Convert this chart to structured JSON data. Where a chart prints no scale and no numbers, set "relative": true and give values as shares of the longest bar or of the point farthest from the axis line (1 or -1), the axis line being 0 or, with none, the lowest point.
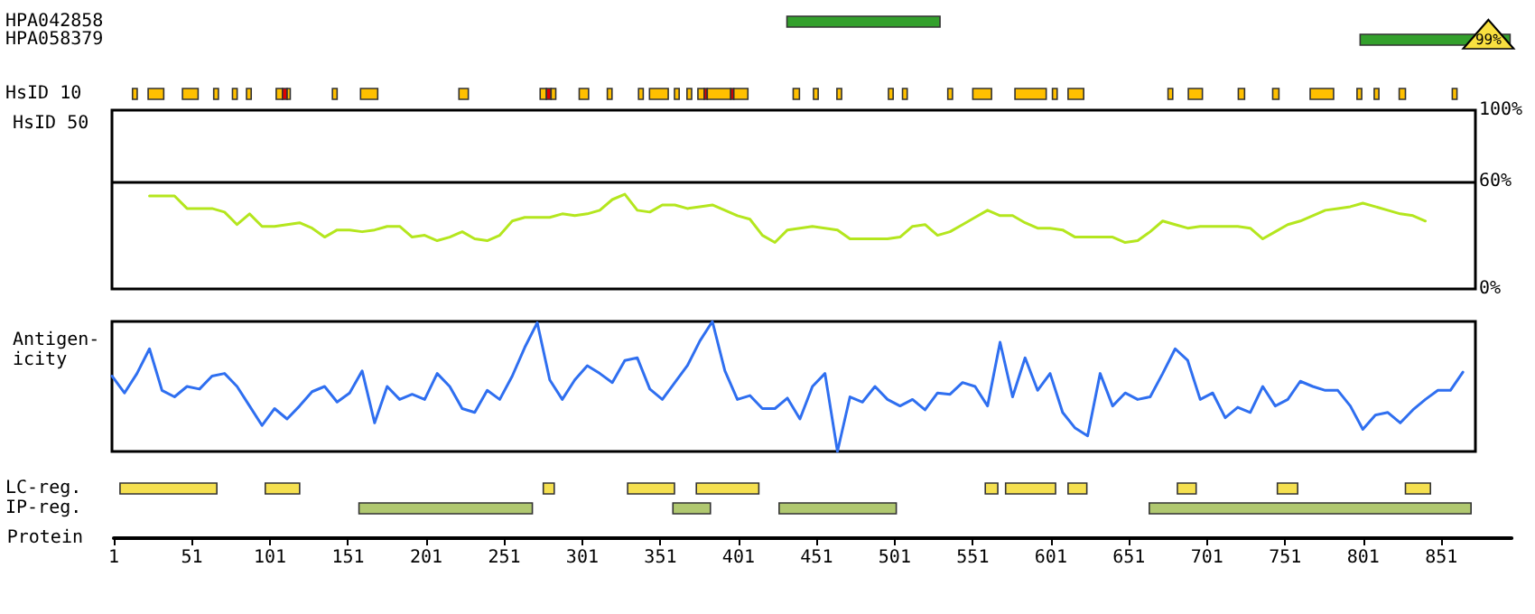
{
  "chart_data": [
    {
      "type": "bar",
      "orientation": "horizontal",
      "categories": [
        "HPA042858",
        "HPA058379",
        null,
        null,
        "HsID 10"
      ],
      "xlim": [
        1,
        896
      ],
      "tick_labels": "y",
      "annotations": [
        {
          "text": "99%",
          "x": 895,
          "y": "HPA058379"
        }
      ],
      "series": [
        {
          "color": "#33a02c",
          "base": [
            432,
            799,
            null,
            null,
            null
          ],
          "values": [
            98,
            96,
            null,
            null,
            null
          ]
        },
        {
          "color": "#ffc000",
          "base": [
            null,
            null,
            null,
            null,
            13
          ],
          "values": [
            null,
            null,
            null,
            null,
            3
          ]
        },
        {
          "color": "#ffc000",
          "base": [
            null,
            null,
            null,
            null,
            23
          ],
          "values": [
            null,
            null,
            null,
            null,
            10
          ]
        },
        {
          "color": "#ffc000",
          "base": [
            null,
            null,
            null,
            null,
            45
          ],
          "values": [
            null,
            null,
            null,
            null,
            10
          ]
        },
        {
          "color": "#ffc000",
          "base": [
            null,
            null,
            null,
            null,
            65
          ],
          "values": [
            null,
            null,
            null,
            null,
            3
          ]
        },
        {
          "color": "#ffc000",
          "base": [
            null,
            null,
            null,
            null,
            77
          ],
          "values": [
            null,
            null,
            null,
            null,
            3
          ]
        },
        {
          "color": "#ffc000",
          "base": [
            null,
            null,
            null,
            null,
            86
          ],
          "values": [
            null,
            null,
            null,
            null,
            3
          ]
        },
        {
          "color": "#ffc000",
          "base": [
            null,
            null,
            null,
            null,
            105
          ],
          "values": [
            null,
            null,
            null,
            null,
            4
          ]
        },
        {
          "color": "#e00000",
          "base": [
            null,
            null,
            null,
            null,
            109
          ],
          "values": [
            null,
            null,
            null,
            null,
            3
          ]
        },
        {
          "color": "#ffc000",
          "base": [
            null,
            null,
            null,
            null,
            112
          ],
          "values": [
            null,
            null,
            null,
            null,
            2
          ]
        },
        {
          "color": "#ffc000",
          "base": [
            null,
            null,
            null,
            null,
            141
          ],
          "values": [
            null,
            null,
            null,
            null,
            3
          ]
        },
        {
          "color": "#ffc000",
          "base": [
            null,
            null,
            null,
            null,
            159
          ],
          "values": [
            null,
            null,
            null,
            null,
            11
          ]
        },
        {
          "color": "#ffc000",
          "base": [
            null,
            null,
            null,
            null,
            222
          ],
          "values": [
            null,
            null,
            null,
            null,
            6
          ]
        },
        {
          "color": "#ffc000",
          "base": [
            null,
            null,
            null,
            null,
            274
          ],
          "values": [
            null,
            null,
            null,
            null,
            4
          ]
        },
        {
          "color": "#e00000",
          "base": [
            null,
            null,
            null,
            null,
            278
          ],
          "values": [
            null,
            null,
            null,
            null,
            3
          ]
        },
        {
          "color": "#ffc000",
          "base": [
            null,
            null,
            null,
            null,
            281
          ],
          "values": [
            null,
            null,
            null,
            null,
            3
          ]
        },
        {
          "color": "#ffc000",
          "base": [
            null,
            null,
            null,
            null,
            299
          ],
          "values": [
            null,
            null,
            null,
            null,
            6
          ]
        },
        {
          "color": "#ffc000",
          "base": [
            null,
            null,
            null,
            null,
            317
          ],
          "values": [
            null,
            null,
            null,
            null,
            3
          ]
        },
        {
          "color": "#ffc000",
          "base": [
            null,
            null,
            null,
            null,
            337
          ],
          "values": [
            null,
            null,
            null,
            null,
            3
          ]
        },
        {
          "color": "#ffc000",
          "base": [
            null,
            null,
            null,
            null,
            344
          ],
          "values": [
            null,
            null,
            null,
            null,
            12
          ]
        },
        {
          "color": "#ffc000",
          "base": [
            null,
            null,
            null,
            null,
            360
          ],
          "values": [
            null,
            null,
            null,
            null,
            3
          ]
        },
        {
          "color": "#ffc000",
          "base": [
            null,
            null,
            null,
            null,
            368
          ],
          "values": [
            null,
            null,
            null,
            null,
            3
          ]
        },
        {
          "color": "#ffc000",
          "base": [
            null,
            null,
            null,
            null,
            375
          ],
          "values": [
            null,
            null,
            null,
            null,
            4
          ]
        },
        {
          "color": "#e00000",
          "base": [
            null,
            null,
            null,
            null,
            379
          ],
          "values": [
            null,
            null,
            null,
            null,
            2
          ]
        },
        {
          "color": "#ffc000",
          "base": [
            null,
            null,
            null,
            null,
            381
          ],
          "values": [
            null,
            null,
            null,
            null,
            15
          ]
        },
        {
          "color": "#e00000",
          "base": [
            null,
            null,
            null,
            null,
            396
          ],
          "values": [
            null,
            null,
            null,
            null,
            2
          ]
        },
        {
          "color": "#ffc000",
          "base": [
            null,
            null,
            null,
            null,
            398
          ],
          "values": [
            null,
            null,
            null,
            null,
            9
          ]
        },
        {
          "color": "#ffc000",
          "base": [
            null,
            null,
            null,
            null,
            436
          ],
          "values": [
            null,
            null,
            null,
            null,
            4
          ]
        },
        {
          "color": "#ffc000",
          "base": [
            null,
            null,
            null,
            null,
            449
          ],
          "values": [
            null,
            null,
            null,
            null,
            3
          ]
        },
        {
          "color": "#ffc000",
          "base": [
            null,
            null,
            null,
            null,
            464
          ],
          "values": [
            null,
            null,
            null,
            null,
            3
          ]
        },
        {
          "color": "#ffc000",
          "base": [
            null,
            null,
            null,
            null,
            497
          ],
          "values": [
            null,
            null,
            null,
            null,
            3
          ]
        },
        {
          "color": "#ffc000",
          "base": [
            null,
            null,
            null,
            null,
            506
          ],
          "values": [
            null,
            null,
            null,
            null,
            3
          ]
        },
        {
          "color": "#ffc000",
          "base": [
            null,
            null,
            null,
            null,
            535
          ],
          "values": [
            null,
            null,
            null,
            null,
            3
          ]
        },
        {
          "color": "#ffc000",
          "base": [
            null,
            null,
            null,
            null,
            551
          ],
          "values": [
            null,
            null,
            null,
            null,
            12
          ]
        },
        {
          "color": "#ffc000",
          "base": [
            null,
            null,
            null,
            null,
            578
          ],
          "values": [
            null,
            null,
            null,
            null,
            20
          ]
        },
        {
          "color": "#ffc000",
          "base": [
            null,
            null,
            null,
            null,
            602
          ],
          "values": [
            null,
            null,
            null,
            null,
            3
          ]
        },
        {
          "color": "#ffc000",
          "base": [
            null,
            null,
            null,
            null,
            612
          ],
          "values": [
            null,
            null,
            null,
            null,
            10
          ]
        },
        {
          "color": "#ffc000",
          "base": [
            null,
            null,
            null,
            null,
            676
          ],
          "values": [
            null,
            null,
            null,
            null,
            3
          ]
        },
        {
          "color": "#ffc000",
          "base": [
            null,
            null,
            null,
            null,
            689
          ],
          "values": [
            null,
            null,
            null,
            null,
            9
          ]
        },
        {
          "color": "#ffc000",
          "base": [
            null,
            null,
            null,
            null,
            721
          ],
          "values": [
            null,
            null,
            null,
            null,
            4
          ]
        },
        {
          "color": "#ffc000",
          "base": [
            null,
            null,
            null,
            null,
            743
          ],
          "values": [
            null,
            null,
            null,
            null,
            4
          ]
        },
        {
          "color": "#ffc000",
          "base": [
            null,
            null,
            null,
            null,
            767
          ],
          "values": [
            null,
            null,
            null,
            null,
            15
          ]
        },
        {
          "color": "#ffc000",
          "base": [
            null,
            null,
            null,
            null,
            797
          ],
          "values": [
            null,
            null,
            null,
            null,
            3
          ]
        },
        {
          "color": "#ffc000",
          "base": [
            null,
            null,
            null,
            null,
            808
          ],
          "values": [
            null,
            null,
            null,
            null,
            3
          ]
        },
        {
          "color": "#ffc000",
          "base": [
            null,
            null,
            null,
            null,
            824
          ],
          "values": [
            null,
            null,
            null,
            null,
            4
          ]
        },
        {
          "color": "#ffc000",
          "base": [
            null,
            null,
            null,
            null,
            858
          ],
          "values": [
            null,
            null,
            null,
            null,
            3
          ]
        }
      ]
    },
    {
      "type": "line",
      "ylabel": "HsID 50",
      "ylim": [
        0,
        100
      ],
      "tick_labels": "y",
      "categories": [
        null,
        null,
        null,
        null,
        null,
        null,
        null,
        null,
        null,
        null,
        null,
        null,
        null,
        null,
        null,
        null,
        null,
        null,
        null,
        null,
        null,
        null,
        null,
        null,
        null,
        null,
        null,
        null,
        null,
        null,
        null,
        null,
        null,
        null,
        null,
        null,
        null,
        null,
        null,
        null,
        null,
        null,
        null,
        null,
        null,
        null,
        null,
        null,
        null,
        null,
        null,
        null,
        null,
        null,
        null,
        null,
        null,
        null,
        null,
        null,
        null,
        null,
        null,
        null,
        null,
        null,
        null,
        null,
        null,
        null,
        null,
        null,
        null,
        null,
        null,
        null,
        null,
        null,
        null,
        null,
        null,
        null,
        null,
        null,
        null,
        null,
        null,
        null,
        null,
        null,
        null,
        null,
        null,
        null,
        null,
        null,
        null,
        null,
        null,
        null,
        null,
        null,
        null,
        null,
        null,
        null,
        null,
        null,
        null,
        null
      ],
      "yticks": [
        {
          "value": 0,
          "label": "0%"
        },
        {
          "value": 60,
          "label": "60%"
        },
        {
          "value": 100,
          "label": "100%"
        }
      ],
      "ref_lines": [
        {
          "axis": "y",
          "value": 60,
          "color": "#000000"
        }
      ],
      "series": [
        {
          "color": "#b4e61e",
          "values": [
            null,
            null,
            null,
            52,
            52,
            52,
            45,
            45,
            45,
            43,
            36,
            42,
            35,
            35,
            36,
            37,
            34,
            29,
            33,
            33,
            32,
            33,
            35,
            35,
            29,
            30,
            27,
            29,
            32,
            28,
            27,
            30,
            38,
            40,
            40,
            40,
            42,
            41,
            42,
            44,
            50,
            53,
            44,
            43,
            47,
            47,
            45,
            46,
            47,
            44,
            41,
            39,
            30,
            26,
            33,
            34,
            35,
            34,
            33,
            28,
            28,
            28,
            28,
            29,
            35,
            36,
            30,
            32,
            36,
            40,
            44,
            41,
            41,
            37,
            34,
            34,
            33,
            29,
            29,
            29,
            29,
            26,
            27,
            32,
            38,
            36,
            34,
            35,
            35,
            35,
            35,
            34,
            28,
            32,
            36,
            38,
            41,
            44,
            45,
            46,
            48,
            46,
            44,
            42,
            41,
            38,
            null,
            null,
            null,
            null
          ]
        }
      ]
    },
    {
      "type": "line",
      "ylabel": "Antigen-\nicity",
      "relative": true,
      "tick_labels": false,
      "categories": [
        null,
        null,
        null,
        null,
        null,
        null,
        null,
        null,
        null,
        null,
        null,
        null,
        null,
        null,
        null,
        null,
        null,
        null,
        null,
        null,
        null,
        null,
        null,
        null,
        null,
        null,
        null,
        null,
        null,
        null,
        null,
        null,
        null,
        null,
        null,
        null,
        null,
        null,
        null,
        null,
        null,
        null,
        null,
        null,
        null,
        null,
        null,
        null,
        null,
        null,
        null,
        null,
        null,
        null,
        null,
        null,
        null,
        null,
        null,
        null,
        null,
        null,
        null,
        null,
        null,
        null,
        null,
        null,
        null,
        null,
        null,
        null,
        null,
        null,
        null,
        null,
        null,
        null,
        null,
        null,
        null,
        null,
        null,
        null,
        null,
        null,
        null,
        null,
        null,
        null,
        null,
        null,
        null,
        null,
        null,
        null,
        null,
        null,
        null,
        null,
        null,
        null,
        null,
        null,
        null,
        null,
        null,
        null,
        null,
        null
      ],
      "series": [
        {
          "color": "#2f6ff0",
          "values": [
            0.58,
            0.45,
            0.6,
            0.79,
            0.47,
            0.42,
            0.5,
            0.48,
            0.58,
            0.6,
            0.5,
            0.35,
            0.2,
            0.33,
            0.25,
            0.35,
            0.46,
            0.5,
            0.38,
            0.45,
            0.62,
            0.22,
            0.5,
            0.4,
            0.44,
            0.4,
            0.6,
            0.5,
            0.33,
            0.3,
            0.47,
            0.4,
            0.58,
            0.8,
            0.99,
            0.55,
            0.4,
            0.55,
            0.66,
            0.6,
            0.53,
            0.7,
            0.72,
            0.48,
            0.4,
            0.53,
            0.66,
            0.85,
            1.0,
            0.62,
            0.4,
            0.43,
            0.33,
            0.33,
            0.41,
            0.25,
            0.5,
            0.6,
            0,
            0.42,
            0.38,
            0.5,
            0.4,
            0.35,
            0.4,
            0.32,
            0.45,
            0.44,
            0.53,
            0.5,
            0.35,
            0.84,
            0.42,
            0.72,
            0.47,
            0.6,
            0.3,
            0.18,
            0.12,
            0.6,
            0.35,
            0.45,
            0.4,
            0.42,
            0.6,
            0.79,
            0.7,
            0.4,
            0.45,
            0.26,
            0.34,
            0.3,
            0.5,
            0.35,
            0.4,
            0.54,
            0.5,
            0.47,
            0.47,
            0.35,
            0.17,
            0.28,
            0.3,
            0.22,
            0.32,
            0.4,
            0.47,
            0.47,
            0.61,
            null
          ]
        }
      ]
    },
    {
      "type": "bar",
      "orientation": "horizontal",
      "categories": [
        "LC-reg.",
        "IP-reg."
      ],
      "xlim": [
        1,
        896
      ],
      "xlabel": "Protein",
      "xticks": [
        1,
        51,
        101,
        151,
        201,
        251,
        301,
        351,
        401,
        451,
        501,
        551,
        601,
        651,
        701,
        751,
        801,
        851
      ],
      "series": [
        {
          "colors": [
            "#f5e050",
            "#b0c870"
          ],
          "base": [
            5,
            158
          ],
          "values": [
            62,
            111
          ]
        },
        {
          "colors": [
            "#f5e050",
            "#b0c870"
          ],
          "base": [
            98,
            359
          ],
          "values": [
            22,
            24
          ]
        },
        {
          "colors": [
            "#f5e050",
            "#b0c870"
          ],
          "base": [
            276,
            427
          ],
          "values": [
            7,
            75
          ]
        },
        {
          "colors": [
            "#f5e050",
            "#b0c870"
          ],
          "base": [
            330,
            664
          ],
          "values": [
            30,
            206
          ]
        },
        {
          "colors": [
            "#f5e050",
            null
          ],
          "base": [
            374,
            null
          ],
          "values": [
            40,
            null
          ]
        },
        {
          "colors": [
            "#f5e050",
            null
          ],
          "base": [
            559,
            null
          ],
          "values": [
            8,
            null
          ]
        },
        {
          "colors": [
            "#f5e050",
            null
          ],
          "base": [
            572,
            null
          ],
          "values": [
            32,
            null
          ]
        },
        {
          "colors": [
            "#f5e050",
            null
          ],
          "base": [
            612,
            null
          ],
          "values": [
            12,
            null
          ]
        },
        {
          "colors": [
            "#f5e050",
            null
          ],
          "base": [
            682,
            null
          ],
          "values": [
            12,
            null
          ]
        },
        {
          "colors": [
            "#f5e050",
            null
          ],
          "base": [
            746,
            null
          ],
          "values": [
            13,
            null
          ]
        },
        {
          "colors": [
            "#f5e050",
            null
          ],
          "base": [
            828,
            null
          ],
          "values": [
            16,
            null
          ]
        }
      ]
    }
  ]
}
